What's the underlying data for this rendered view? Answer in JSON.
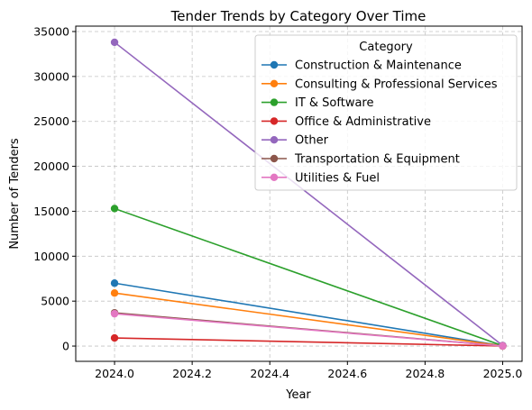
{
  "chart_data": {
    "type": "line",
    "title": "Tender Trends by Category Over Time",
    "xlabel": "Year",
    "ylabel": "Number of Tenders",
    "x": [
      2024,
      2025
    ],
    "xlim": [
      2023.9,
      2025.05
    ],
    "ylim": [
      -1700,
      35600
    ],
    "xticks": [
      2024.0,
      2024.2,
      2024.4,
      2024.6,
      2024.8,
      2025.0
    ],
    "xtick_labels": [
      "2024.0",
      "2024.2",
      "2024.4",
      "2024.6",
      "2024.8",
      "2025.0"
    ],
    "yticks": [
      0,
      5000,
      10000,
      15000,
      20000,
      25000,
      30000,
      35000
    ],
    "ytick_labels": [
      "0",
      "5000",
      "10000",
      "15000",
      "20000",
      "25000",
      "30000",
      "35000"
    ],
    "grid": true,
    "legend": {
      "title": "Category",
      "placement": "top-right"
    },
    "series": [
      {
        "name": "Construction & Maintenance",
        "color": "#1f77b4",
        "values": [
          7000,
          30
        ]
      },
      {
        "name": "Consulting & Professional Services",
        "color": "#ff7f0e",
        "values": [
          5900,
          20
        ]
      },
      {
        "name": "IT & Software",
        "color": "#2ca02c",
        "values": [
          15300,
          40
        ]
      },
      {
        "name": "Office & Administrative",
        "color": "#d62728",
        "values": [
          900,
          5
        ]
      },
      {
        "name": "Other",
        "color": "#9467bd",
        "values": [
          33800,
          60
        ]
      },
      {
        "name": "Transportation & Equipment",
        "color": "#8c564b",
        "values": [
          3700,
          10
        ]
      },
      {
        "name": "Utilities & Fuel",
        "color": "#e377c2",
        "values": [
          3600,
          10
        ]
      }
    ]
  }
}
